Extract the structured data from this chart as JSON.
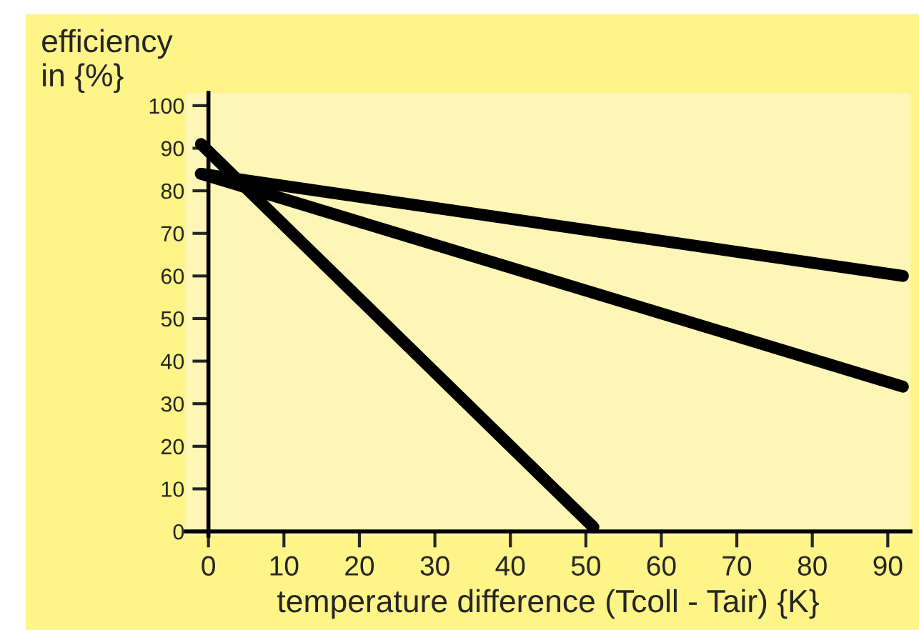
{
  "chart_data": {
    "type": "line",
    "xlabel": "temperature difference (Tcoll - Tair) {K}",
    "ylabel": "efficiency\nin {%}",
    "series": [
      {
        "color": "#000000",
        "x": [
          -1,
          51
        ],
        "values": [
          91,
          1
        ]
      },
      {
        "color": "#000000",
        "x": [
          -1,
          92
        ],
        "values": [
          84,
          34
        ]
      },
      {
        "color": "#000000",
        "x": [
          -1,
          92
        ],
        "values": [
          84,
          60
        ]
      }
    ],
    "xlim": [
      -3,
      93
    ],
    "ylim": [
      -1,
      103
    ],
    "xticks": [
      0,
      10,
      20,
      30,
      40,
      50,
      60,
      70,
      80,
      90
    ],
    "yticks": [
      0,
      10,
      20,
      30,
      40,
      50,
      60,
      70,
      80,
      90,
      100
    ],
    "legend": false,
    "marker": "none",
    "line_style": "solid"
  }
}
